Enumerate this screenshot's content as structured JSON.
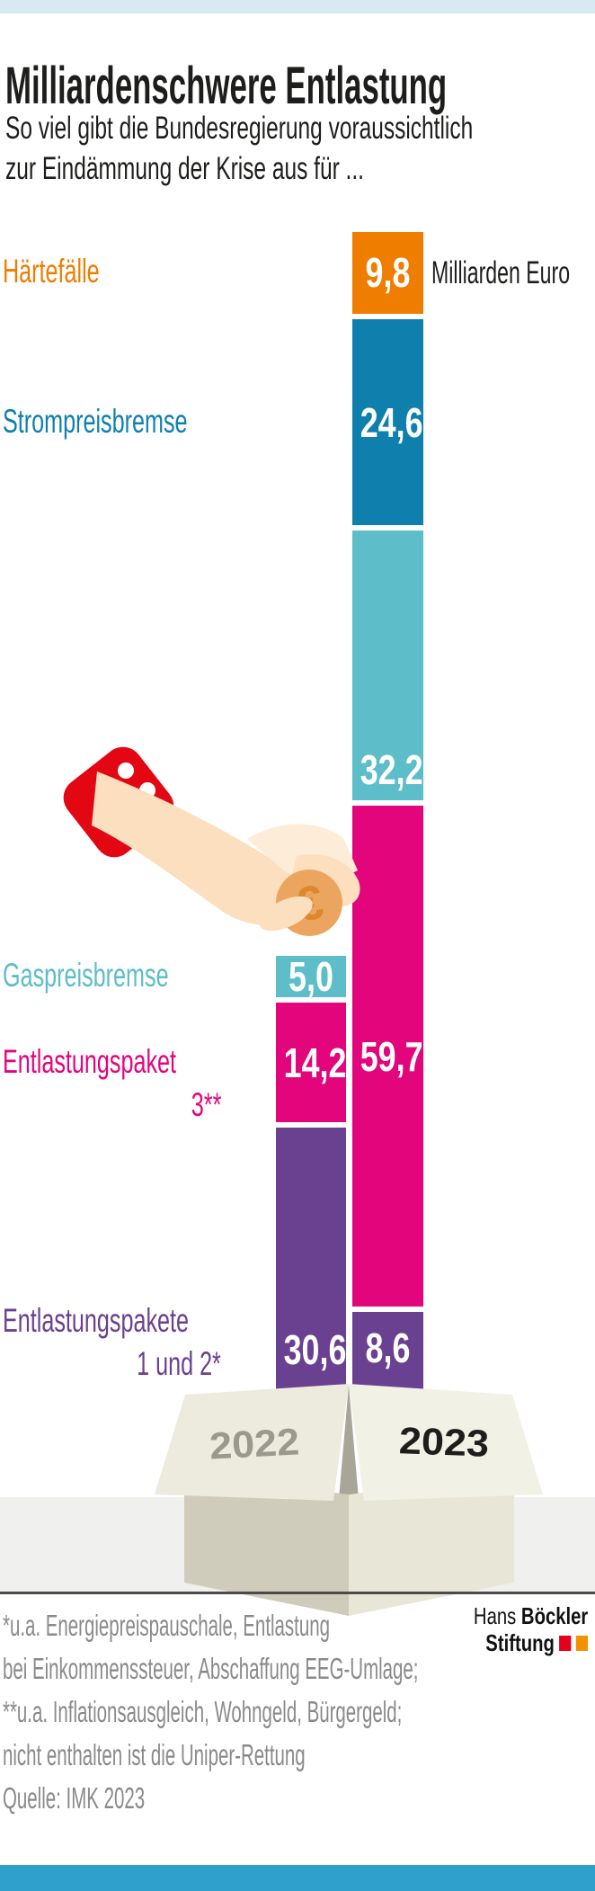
{
  "theme": {
    "ink": "#1d1d1b",
    "top_strip": "#d8e9f1",
    "bottom_bar": "#2f9fcc",
    "band": "#f0f0ee",
    "rule": "#4b4b49",
    "footnote_gray": "#8a8a8a"
  },
  "header": {
    "title": "Milliardenschwere Entlastung",
    "subtitle_lines": [
      "So viel gibt die Bundesregierung voraussichtlich",
      "zur Eindämmung der Krise aus für ..."
    ]
  },
  "unit_label": "Milliarden Euro",
  "chart_data": {
    "type": "bar",
    "stacked": true,
    "unit": "Milliarden Euro",
    "columns": [
      "2022",
      "2023"
    ],
    "segments": [
      {
        "id": "haertefaelle",
        "label": "Härtefälle",
        "color": "#ef7d00",
        "values": {
          "2022": null,
          "2023": 9.8
        },
        "display": {
          "2023": "9,8"
        }
      },
      {
        "id": "strompreisbremse",
        "label": "Strompreisbremse",
        "color": "#0f80ad",
        "values": {
          "2022": null,
          "2023": 24.6
        },
        "display": {
          "2023": "24,6"
        }
      },
      {
        "id": "gaspreisbremse",
        "label": "Gaspreisbremse",
        "color": "#5dbdc9",
        "values": {
          "2022": 5.0,
          "2023": 32.2
        },
        "display": {
          "2022": "5,0",
          "2023": "32,2"
        }
      },
      {
        "id": "entlastungspaket3",
        "label": "Entlastungspaket",
        "label_line2": "3**",
        "color": "#e2057c",
        "values": {
          "2022": 14.2,
          "2023": 59.7
        },
        "display": {
          "2022": "14,2",
          "2023": "59,7"
        }
      },
      {
        "id": "entlastungspakete12",
        "label": "Entlastungspakete",
        "label_line2": "1 und 2*",
        "color": "#6a4090",
        "values": {
          "2022": 30.6,
          "2023": 8.6
        },
        "display": {
          "2022": "30,6",
          "2023": "8,6"
        }
      }
    ]
  },
  "box": {
    "left_year": "2022",
    "right_year": "2023",
    "left_year_color": "#9b998e",
    "right_year_color": "#1d1d1b",
    "flap_left_color": "#ecebdd",
    "flap_right_color": "#f2f1e5",
    "body_left_color": "#cfccbb",
    "body_right_color": "#e8e6d7",
    "inner_color": "#a8a599"
  },
  "illustration": {
    "name": "hand-inserting-coin",
    "sleeve_color": "#e30613",
    "skin_color": "#fbdfbf",
    "skin_highlight_color": "#fdecd8",
    "coin_color": "#eca55e",
    "coin_symbol": "€",
    "coin_symbol_color": "#dd882b"
  },
  "footnotes": [
    "*u.a. Energiepreispauschale, Entlastung",
    "bei Einkommenssteuer, Abschaffung EEG-Umlage;",
    "**u.a. Inflationsausgleich, Wohngeld, Bürgergeld;",
    "nicht enthalten ist die Uniper-Rettung",
    "Quelle: IMK 2023"
  ],
  "logo": {
    "name_regular": "Hans",
    "name_bold": "Böckler",
    "line2": "Stiftung",
    "square_colors": [
      "#e2001a",
      "#f39200"
    ]
  }
}
